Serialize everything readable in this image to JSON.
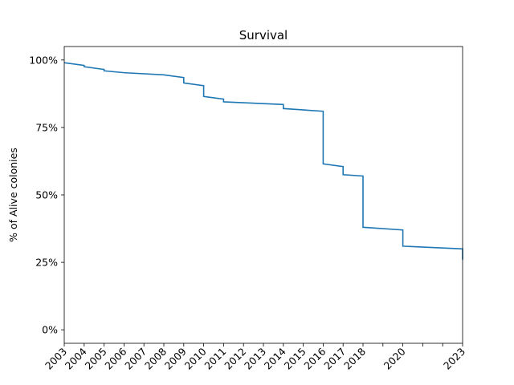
{
  "chart_data": {
    "type": "line",
    "title": "Survival",
    "xlabel": "",
    "ylabel": "% of Alive colonies",
    "grid": false,
    "legend": "none",
    "line_color": "#1f77b4",
    "xlim": [
      2003,
      2023
    ],
    "ylim": [
      -0.05,
      1.05
    ],
    "x_ticks": [
      2003,
      2004,
      2005,
      2006,
      2007,
      2008,
      2009,
      2010,
      2011,
      2012,
      2013,
      2014,
      2015,
      2016,
      2017,
      2018,
      2020,
      2023
    ],
    "x_tick_labels": [
      "2003",
      "2004",
      "2005",
      "2006",
      "2007",
      "2008",
      "2009",
      "2010",
      "2011",
      "2012",
      "2013",
      "2014",
      "2015",
      "2016",
      "2017",
      "2018",
      "2020",
      "2023"
    ],
    "x_minor_ticks": [
      2019,
      2021,
      2022
    ],
    "y_ticks": [
      0,
      0.25,
      0.5,
      0.75,
      1.0
    ],
    "y_tick_labels": [
      "0%",
      "25%",
      "50%",
      "75%",
      "100%"
    ],
    "series": [
      {
        "x": [
          2003.0,
          2004.0,
          2004.0,
          2005.0,
          2005.0,
          2006.0,
          2008.0,
          2009.0,
          2009.0,
          2010.0,
          2010.0,
          2011.0,
          2011.0,
          2014.0,
          2014.0,
          2016.0,
          2016.0,
          2017.0,
          2017.0,
          2018.0,
          2018.0,
          2020.0,
          2020.0,
          2023.0,
          2023.0
        ],
        "y": [
          0.99,
          0.98,
          0.975,
          0.965,
          0.96,
          0.953,
          0.945,
          0.935,
          0.915,
          0.905,
          0.865,
          0.855,
          0.845,
          0.835,
          0.82,
          0.81,
          0.615,
          0.605,
          0.575,
          0.57,
          0.38,
          0.37,
          0.31,
          0.3,
          0.26
        ]
      }
    ]
  }
}
